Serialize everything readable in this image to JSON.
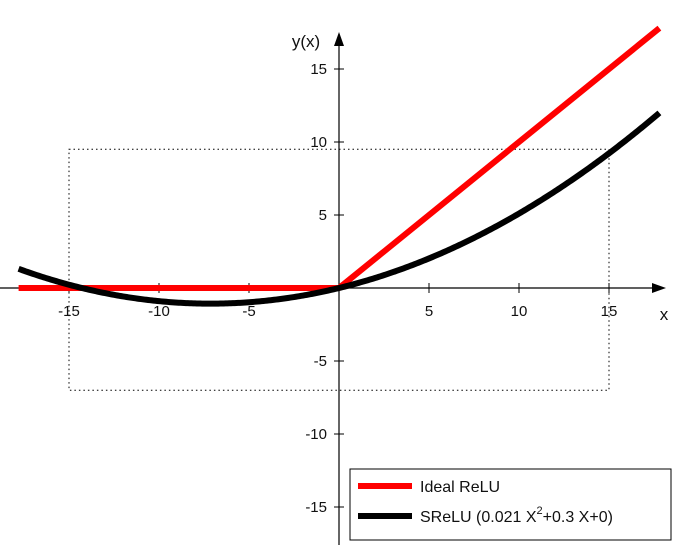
{
  "chart_data": {
    "type": "line",
    "title": "",
    "xlabel": "x",
    "ylabel": "y(x)",
    "xlim": [
      -17.8,
      17.8
    ],
    "ylim": [
      -17.6,
      17.3
    ],
    "x_ticks": [
      -15,
      -10,
      -5,
      5,
      10,
      15
    ],
    "y_ticks": [
      -15,
      -10,
      -5,
      5,
      10,
      15
    ],
    "x_tick_labels": [
      "-15",
      "-10",
      "-5",
      "5",
      "10",
      "15"
    ],
    "y_tick_labels": [
      "-15",
      "-10",
      "-5",
      "5",
      "10",
      "15"
    ],
    "grid": false,
    "legend_position": "bottom-right",
    "dotted_box": {
      "x": [
        -15,
        15
      ],
      "y": [
        -7,
        9.5
      ]
    },
    "series": [
      {
        "name": "Ideal ReLU",
        "color": "#ff0000",
        "x": [
          -17.8,
          0,
          17.8
        ],
        "y": [
          0,
          0,
          17.8
        ]
      },
      {
        "name": "SReLU (0.021 X",
        "name_sup": "2",
        "name_tail": "+0.3 X+0)",
        "color": "#000000",
        "function": {
          "a": 0.021,
          "b": 0.3,
          "c": 0
        },
        "x_range": [
          -17.8,
          17.8
        ]
      }
    ]
  }
}
